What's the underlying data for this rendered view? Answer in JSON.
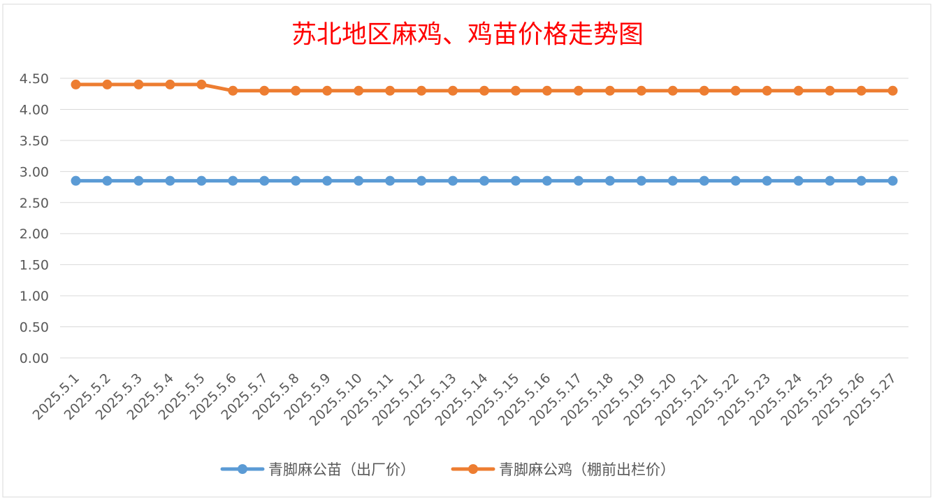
{
  "chart_data": {
    "type": "line",
    "title": "苏北地区麻鸡、鸡苗价格走势图",
    "title_color": "#ff0000",
    "ylim": [
      0,
      4.5
    ],
    "yticks": [
      "0.00",
      "0.50",
      "1.00",
      "1.50",
      "2.00",
      "2.50",
      "3.00",
      "3.50",
      "4.00",
      "4.50"
    ],
    "grid": true,
    "legend_position": "bottom",
    "categories": [
      "2025.5.1",
      "2025.5.2",
      "2025.5.3",
      "2025.5.4",
      "2025.5.5",
      "2025.5.6",
      "2025.5.7",
      "2025.5.8",
      "2025.5.9",
      "2025.5.10",
      "2025.5.11",
      "2025.5.12",
      "2025.5.13",
      "2025.5.14",
      "2025.5.15",
      "2025.5.16",
      "2025.5.17",
      "2025.5.18",
      "2025.5.19",
      "2025.5.20",
      "2025.5.21",
      "2025.5.22",
      "2025.5.23",
      "2025.5.24",
      "2025.5.25",
      "2025.5.26",
      "2025.5.27"
    ],
    "series": [
      {
        "name": "青脚麻公苗（出厂价）",
        "color": "#5b9bd5",
        "values": [
          2.85,
          2.85,
          2.85,
          2.85,
          2.85,
          2.85,
          2.85,
          2.85,
          2.85,
          2.85,
          2.85,
          2.85,
          2.85,
          2.85,
          2.85,
          2.85,
          2.85,
          2.85,
          2.85,
          2.85,
          2.85,
          2.85,
          2.85,
          2.85,
          2.85,
          2.85,
          2.85
        ]
      },
      {
        "name": "青脚麻公鸡（棚前出栏价）",
        "color": "#ed7d31",
        "values": [
          4.4,
          4.4,
          4.4,
          4.4,
          4.4,
          4.3,
          4.3,
          4.3,
          4.3,
          4.3,
          4.3,
          4.3,
          4.3,
          4.3,
          4.3,
          4.3,
          4.3,
          4.3,
          4.3,
          4.3,
          4.3,
          4.3,
          4.3,
          4.3,
          4.3,
          4.3,
          4.3
        ]
      }
    ]
  }
}
